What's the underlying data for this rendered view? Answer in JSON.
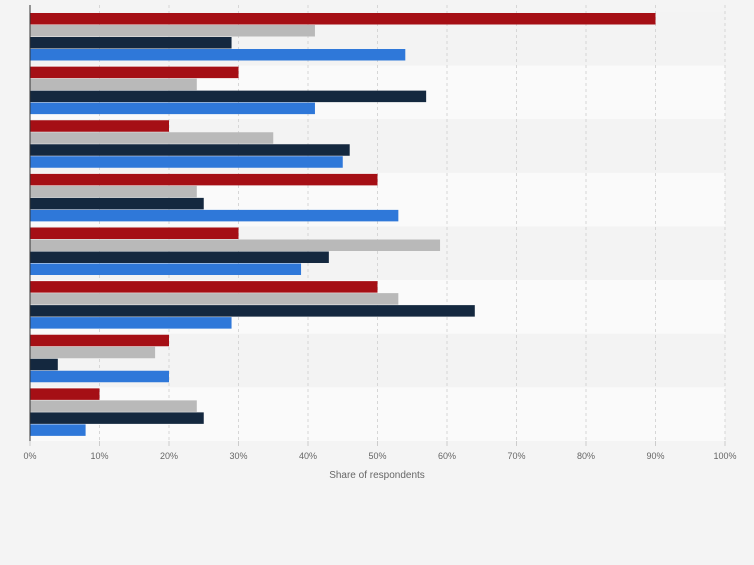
{
  "chart_data": {
    "type": "bar",
    "orientation": "horizontal",
    "categories": [
      "",
      "",
      "",
      "",
      "",
      "",
      "",
      ""
    ],
    "series": [
      {
        "color": "#a50f15",
        "values": [
          90,
          30,
          20,
          50,
          30,
          50,
          20,
          10
        ]
      },
      {
        "color": "#b9b9b9",
        "values": [
          41,
          24,
          35,
          24,
          59,
          53,
          18,
          24
        ]
      },
      {
        "color": "#14283f",
        "values": [
          29,
          57,
          46,
          25,
          43,
          64,
          4,
          25
        ]
      },
      {
        "color": "#2f78d9",
        "values": [
          54,
          41,
          45,
          53,
          39,
          29,
          20,
          8
        ]
      }
    ],
    "xlabel": "Share of respondents",
    "xlim": [
      0,
      100
    ],
    "xticks": [
      "0%",
      "10%",
      "20%",
      "30%",
      "40%",
      "50%",
      "60%",
      "70%",
      "80%",
      "90%",
      "100%"
    ],
    "grid": true,
    "legend": "none"
  }
}
